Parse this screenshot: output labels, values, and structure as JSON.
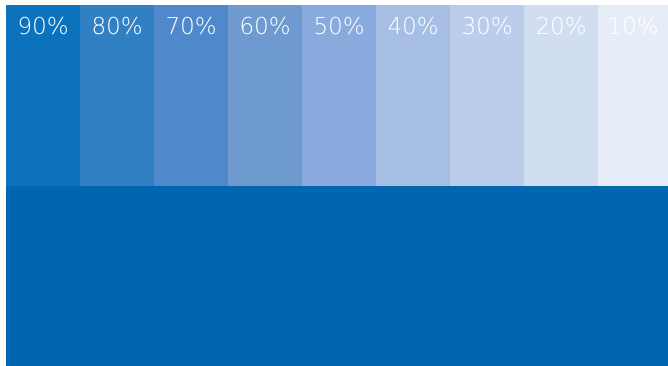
{
  "palette": {
    "base_color": "#0066B0",
    "tints": [
      {
        "label": "90%",
        "color": "#0B72BB"
      },
      {
        "label": "80%",
        "color": "#3180C4"
      },
      {
        "label": "70%",
        "color": "#5089CB"
      },
      {
        "label": "60%",
        "color": "#6F9ACF"
      },
      {
        "label": "50%",
        "color": "#8AA9DC"
      },
      {
        "label": "40%",
        "color": "#A6BEE3"
      },
      {
        "label": "30%",
        "color": "#BCCDEB"
      },
      {
        "label": "20%",
        "color": "#D1DDF1"
      },
      {
        "label": "10%",
        "color": "#E7EDF7"
      }
    ]
  }
}
